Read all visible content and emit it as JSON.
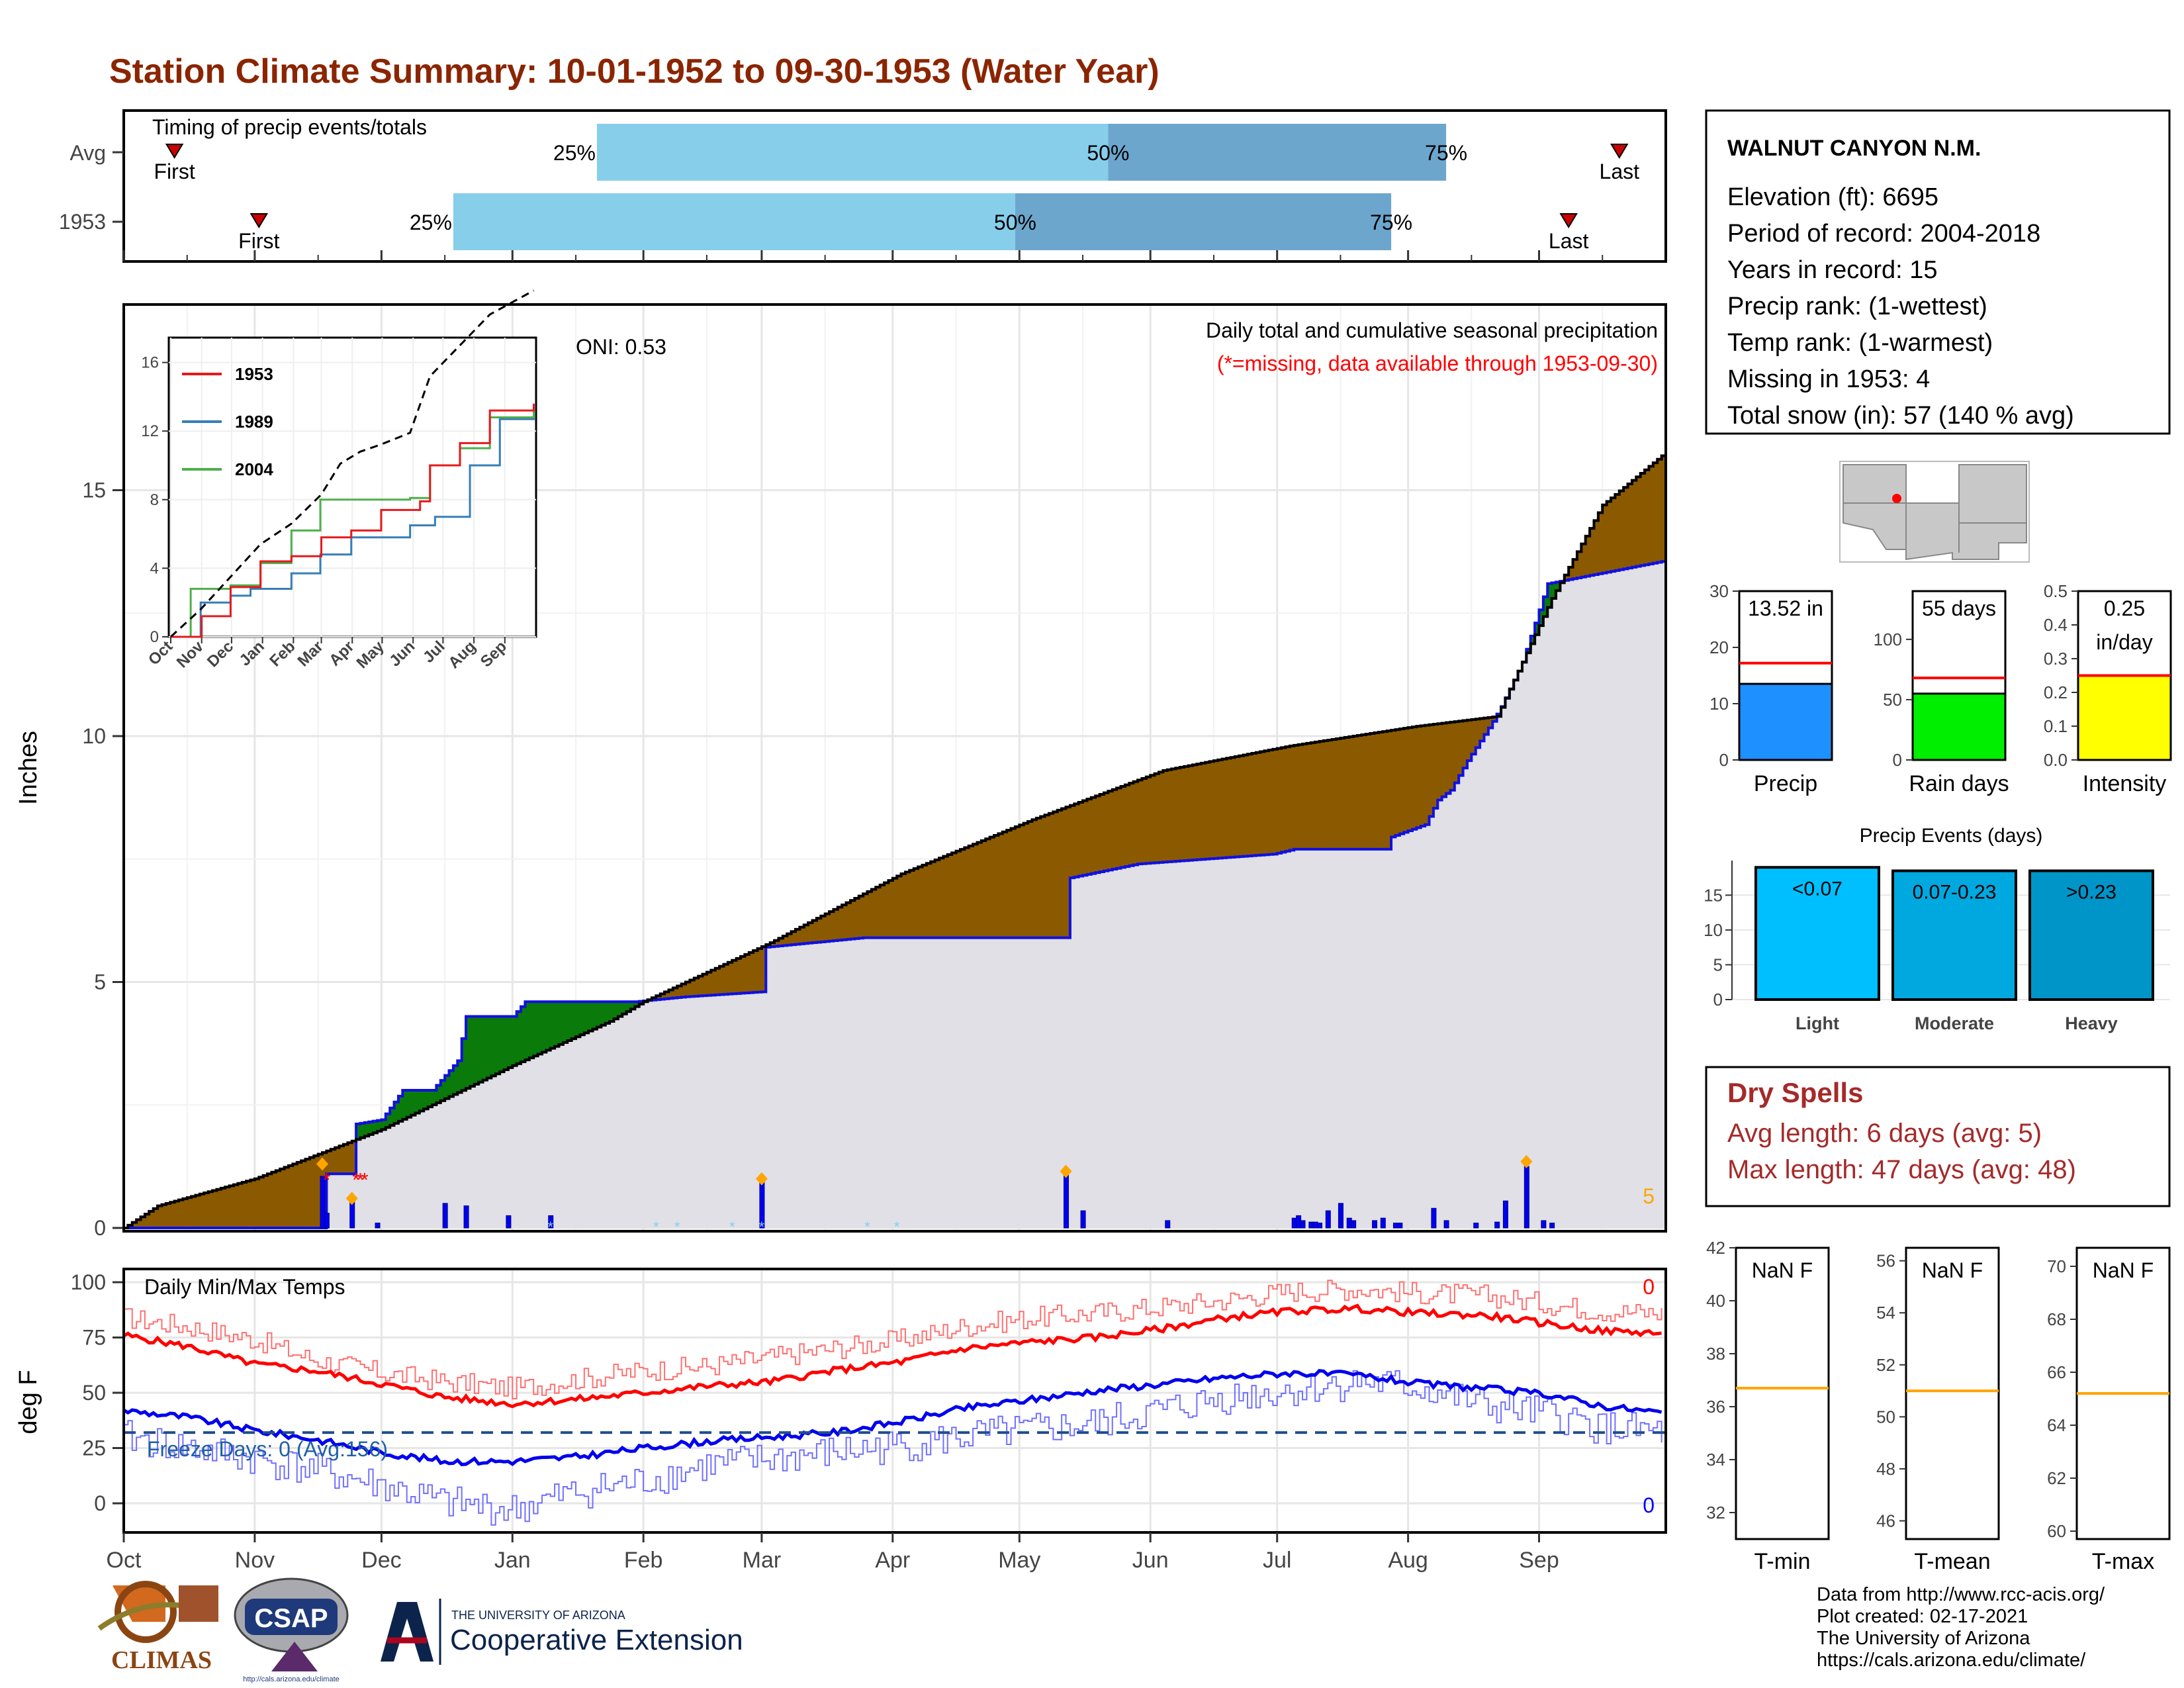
{
  "title": "Station Climate Summary: 10-01-1952 to 09-30-1953 (Water Year)",
  "colors": {
    "title": "#8b2500",
    "brown": "#8b5a00",
    "green": "#0a7a0a",
    "blue": "#1010e0",
    "red": "#ff0000",
    "orange": "#ffa500",
    "lightblue": "#87ceeb",
    "midblue": "#6ca6cd",
    "area": "#e0e0e6"
  },
  "timing": {
    "title": "Timing of precip events/totals",
    "rows": [
      {
        "label": "Avg",
        "first_label": "First",
        "last_label": "Last",
        "p25_label": "25%",
        "p50_label": "50%",
        "p75_label": "75%",
        "first_day": 12,
        "p25_day": 112,
        "p50_day": 233,
        "p75_day": 313,
        "last_day": 354
      },
      {
        "label": "1953",
        "first_label": "First",
        "last_label": "Last",
        "p25_label": "25%",
        "p50_label": "50%",
        "p75_label": "75%",
        "first_day": 32,
        "p25_day": 78,
        "p50_day": 211,
        "p75_day": 300,
        "last_day": 342
      }
    ]
  },
  "months": [
    "Oct",
    "Nov",
    "Dec",
    "Jan",
    "Feb",
    "Mar",
    "Apr",
    "May",
    "Jun",
    "Jul",
    "Aug",
    "Sep"
  ],
  "precip": {
    "ylabel": "Inches",
    "yticks": [
      "0",
      "5",
      "10",
      "15"
    ],
    "oni": "ONI: 0.53",
    "caption": "Daily total and cumulative seasonal precipitation",
    "missing_note": "(*=missing, data available through 1953-09-30)",
    "count_label": "5",
    "avg_cum": [
      [
        0,
        0
      ],
      [
        8,
        0.45
      ],
      [
        31,
        1
      ],
      [
        61,
        2
      ],
      [
        92,
        3.3
      ],
      [
        115,
        4.2
      ],
      [
        123,
        4.6
      ],
      [
        153,
        5.8
      ],
      [
        184,
        7.2
      ],
      [
        215,
        8.3
      ],
      [
        246,
        9.3
      ],
      [
        276,
        9.8
      ],
      [
        306,
        10.2
      ],
      [
        325,
        10.4
      ],
      [
        338,
        12.8
      ],
      [
        350,
        14.7
      ],
      [
        364,
        15.7
      ]
    ],
    "obs_cum": [
      [
        0,
        0
      ],
      [
        47,
        0
      ],
      [
        47,
        1.1
      ],
      [
        54,
        1.1
      ],
      [
        54,
        2.1
      ],
      [
        61,
        2.2
      ],
      [
        66,
        2.8
      ],
      [
        73,
        2.8
      ],
      [
        76,
        3.1
      ],
      [
        79,
        3.4
      ],
      [
        81,
        4.3
      ],
      [
        92,
        4.3
      ],
      [
        95,
        4.6
      ],
      [
        121,
        4.6
      ],
      [
        133,
        4.7
      ],
      [
        151,
        4.8
      ],
      [
        151,
        5.7
      ],
      [
        175,
        5.9
      ],
      [
        223,
        5.9
      ],
      [
        223,
        7.1
      ],
      [
        240,
        7.4
      ],
      [
        272,
        7.6
      ],
      [
        277,
        7.7
      ],
      [
        299,
        7.7
      ],
      [
        300,
        7.95
      ],
      [
        308,
        8.2
      ],
      [
        311,
        8.7
      ],
      [
        314,
        8.9
      ],
      [
        318,
        9.5
      ],
      [
        324,
        10.3
      ],
      [
        326,
        10.6
      ],
      [
        331,
        11.5
      ],
      [
        337,
        13.1
      ],
      [
        364,
        13.55
      ]
    ],
    "daily": [
      [
        47,
        1.05
      ],
      [
        48,
        0.3
      ],
      [
        54,
        0.55
      ],
      [
        60,
        0.1
      ],
      [
        76,
        0.5
      ],
      [
        81,
        0.45
      ],
      [
        91,
        0.25
      ],
      [
        101,
        0.25
      ],
      [
        151,
        0.95
      ],
      [
        223,
        1.15
      ],
      [
        227,
        0.35
      ],
      [
        247,
        0.15
      ],
      [
        277,
        0.2
      ],
      [
        278,
        0.25
      ],
      [
        279,
        0.15
      ],
      [
        281,
        0.12
      ],
      [
        282,
        0.12
      ],
      [
        283,
        0.1
      ],
      [
        285,
        0.35
      ],
      [
        288,
        0.5
      ],
      [
        290,
        0.2
      ],
      [
        291,
        0.15
      ],
      [
        296,
        0.15
      ],
      [
        298,
        0.2
      ],
      [
        301,
        0.1
      ],
      [
        302,
        0.1
      ],
      [
        310,
        0.4
      ],
      [
        313,
        0.15
      ],
      [
        320,
        0.1
      ],
      [
        325,
        0.12
      ],
      [
        327,
        0.55
      ],
      [
        332,
        1.25
      ],
      [
        336,
        0.15
      ],
      [
        338,
        0.1
      ]
    ],
    "orange_markers": [
      [
        47,
        1.3
      ],
      [
        54,
        0.6
      ],
      [
        151,
        1.0
      ],
      [
        223,
        1.15
      ],
      [
        332,
        1.35
      ]
    ],
    "missing_markers": [
      [
        48,
        1.0
      ],
      [
        55,
        1.0
      ],
      [
        56,
        1.0
      ],
      [
        57,
        1.0
      ]
    ]
  },
  "inset": {
    "yticks": [
      "0",
      "4",
      "8",
      "12",
      "16"
    ],
    "xticks": [
      "Oct",
      "Nov",
      "Dec",
      "Jan",
      "Feb",
      "Mar",
      "Apr",
      "May",
      "Jun",
      "Jul",
      "Aug",
      "Sep"
    ],
    "legend": [
      {
        "name": "1953",
        "color": "#e41a1c"
      },
      {
        "name": "1989",
        "color": "#377eb8"
      },
      {
        "name": "2004",
        "color": "#4daf4a"
      }
    ],
    "avg": [
      [
        0,
        0
      ],
      [
        30,
        1.6
      ],
      [
        60,
        3.5
      ],
      [
        90,
        5.4
      ],
      [
        121,
        6.6
      ],
      [
        151,
        8.3
      ],
      [
        170,
        10.1
      ],
      [
        190,
        10.8
      ],
      [
        210,
        11.2
      ],
      [
        240,
        11.9
      ],
      [
        260,
        15.2
      ],
      [
        290,
        17.0
      ],
      [
        320,
        18.8
      ],
      [
        364,
        20.2
      ]
    ],
    "s1953": [
      [
        0,
        0
      ],
      [
        31,
        1.2
      ],
      [
        60,
        2.9
      ],
      [
        90,
        4.4
      ],
      [
        121,
        4.7
      ],
      [
        151,
        5.8
      ],
      [
        181,
        6.2
      ],
      [
        211,
        7.4
      ],
      [
        250,
        7.9
      ],
      [
        260,
        10.0
      ],
      [
        290,
        11.3
      ],
      [
        320,
        13.2
      ],
      [
        364,
        13.6
      ]
    ],
    "s1989": [
      [
        0,
        0
      ],
      [
        30,
        2.0
      ],
      [
        60,
        2.4
      ],
      [
        80,
        2.8
      ],
      [
        121,
        3.7
      ],
      [
        150,
        4.8
      ],
      [
        181,
        5.8
      ],
      [
        240,
        6.5
      ],
      [
        265,
        7.0
      ],
      [
        300,
        10.0
      ],
      [
        330,
        12.7
      ],
      [
        364,
        13.2
      ]
    ],
    "s2004": [
      [
        0,
        0
      ],
      [
        20,
        2.8
      ],
      [
        60,
        3.0
      ],
      [
        90,
        4.3
      ],
      [
        121,
        6.2
      ],
      [
        150,
        8.0
      ],
      [
        190,
        8.0
      ],
      [
        240,
        8.1
      ],
      [
        260,
        10.0
      ],
      [
        290,
        11.0
      ],
      [
        320,
        12.8
      ],
      [
        364,
        13.4
      ]
    ]
  },
  "temps": {
    "ylabel": "deg F",
    "yticks": [
      "0",
      "25",
      "50",
      "75",
      "100"
    ],
    "title": "Daily Min/Max Temps",
    "freeze_label": "Freeze Days: 0 (Avg:156)",
    "max_count": "0",
    "min_count": "0",
    "freeze_line": 32,
    "avg_max": [
      [
        0,
        76
      ],
      [
        15,
        71
      ],
      [
        31,
        63
      ],
      [
        45,
        60
      ],
      [
        61,
        54
      ],
      [
        76,
        48
      ],
      [
        92,
        45
      ],
      [
        107,
        47
      ],
      [
        123,
        50
      ],
      [
        138,
        53
      ],
      [
        153,
        55
      ],
      [
        168,
        60
      ],
      [
        184,
        64
      ],
      [
        199,
        70
      ],
      [
        215,
        73
      ],
      [
        230,
        75
      ],
      [
        246,
        79
      ],
      [
        261,
        84
      ],
      [
        276,
        87
      ],
      [
        292,
        88
      ],
      [
        307,
        86
      ],
      [
        322,
        85
      ],
      [
        338,
        81
      ],
      [
        350,
        78
      ],
      [
        364,
        77
      ]
    ],
    "avg_min": [
      [
        0,
        42
      ],
      [
        15,
        39
      ],
      [
        31,
        33
      ],
      [
        45,
        29
      ],
      [
        61,
        23
      ],
      [
        76,
        19
      ],
      [
        92,
        19
      ],
      [
        107,
        21
      ],
      [
        123,
        25
      ],
      [
        138,
        28
      ],
      [
        153,
        30
      ],
      [
        168,
        32
      ],
      [
        184,
        37
      ],
      [
        199,
        43
      ],
      [
        215,
        47
      ],
      [
        230,
        51
      ],
      [
        246,
        54
      ],
      [
        261,
        57
      ],
      [
        276,
        59
      ],
      [
        292,
        58
      ],
      [
        307,
        54
      ],
      [
        322,
        52
      ],
      [
        338,
        49
      ],
      [
        350,
        44
      ],
      [
        364,
        41
      ]
    ],
    "obs_max": [
      [
        0,
        84
      ],
      [
        15,
        80
      ],
      [
        31,
        74
      ],
      [
        45,
        65
      ],
      [
        61,
        59
      ],
      [
        76,
        55
      ],
      [
        92,
        52
      ],
      [
        107,
        56
      ],
      [
        123,
        60
      ],
      [
        138,
        62
      ],
      [
        153,
        66
      ],
      [
        168,
        70
      ],
      [
        184,
        74
      ],
      [
        199,
        80
      ],
      [
        215,
        84
      ],
      [
        230,
        86
      ],
      [
        246,
        89
      ],
      [
        261,
        92
      ],
      [
        276,
        96
      ],
      [
        292,
        97
      ],
      [
        307,
        95
      ],
      [
        322,
        94
      ],
      [
        338,
        90
      ],
      [
        350,
        87
      ],
      [
        364,
        86
      ]
    ],
    "obs_min": [
      [
        0,
        30
      ],
      [
        15,
        25
      ],
      [
        31,
        20
      ],
      [
        45,
        15
      ],
      [
        61,
        8
      ],
      [
        76,
        0
      ],
      [
        92,
        -3
      ],
      [
        107,
        5
      ],
      [
        123,
        10
      ],
      [
        138,
        17
      ],
      [
        153,
        20
      ],
      [
        168,
        23
      ],
      [
        184,
        26
      ],
      [
        199,
        30
      ],
      [
        215,
        33
      ],
      [
        230,
        36
      ],
      [
        246,
        42
      ],
      [
        261,
        48
      ],
      [
        276,
        51
      ],
      [
        292,
        55
      ],
      [
        307,
        52
      ],
      [
        322,
        44
      ],
      [
        338,
        40
      ],
      [
        350,
        34
      ],
      [
        364,
        32
      ]
    ]
  },
  "station": {
    "name": "WALNUT CANYON N.M.",
    "lines": [
      "Elevation (ft): 6695",
      "Period of record: 2004-2018",
      "Years in record: 15",
      "Precip rank:  (1-wettest)",
      "Temp rank:  (1-warmest)",
      "Missing in 1953: 4",
      "Total snow (in): 57 (140 % avg)"
    ]
  },
  "gauges": [
    {
      "label": "Precip",
      "value_label": "13.52 in",
      "value": 13.52,
      "avg": 17.2,
      "max": 30,
      "ticks": [
        "0",
        "10",
        "20",
        "30"
      ],
      "color": "#1e90ff"
    },
    {
      "label": "Rain days",
      "value_label": "55 days",
      "value": 55,
      "avg": 68,
      "max": 140,
      "ticks": [
        "0",
        "50",
        "100"
      ],
      "color": "#00ee00"
    },
    {
      "label": "Intensity",
      "value_label": "0.25",
      "value_label2": "in/day",
      "value": 0.25,
      "avg": 0.25,
      "max": 0.5,
      "ticks": [
        "0.0",
        "0.1",
        "0.2",
        "0.3",
        "0.4",
        "0.5"
      ],
      "color": "#ffff00"
    }
  ],
  "events": {
    "title": "Precip Events (days)",
    "yticks": [
      "0",
      "5",
      "10",
      "15"
    ],
    "bars": [
      {
        "cat": "Light",
        "label": "<0.07",
        "value": 19,
        "color": "#00bfff"
      },
      {
        "cat": "Moderate",
        "label": "0.07-0.23",
        "value": 18.5,
        "color": "#00a8e0"
      },
      {
        "cat": "Heavy",
        "label": ">0.23",
        "value": 18.5,
        "color": "#0095c8"
      }
    ]
  },
  "dry": {
    "title": "Dry Spells",
    "avg": "Avg length: 6 days (avg: 5)",
    "max": "Max length: 47 days (avg: 48)"
  },
  "temp_boxes": [
    {
      "label": "T-min",
      "value_label": "NaN F",
      "ticks": [
        "32",
        "34",
        "36",
        "38",
        "40",
        "42"
      ],
      "min": 31,
      "max": 42,
      "avg": 36.7
    },
    {
      "label": "T-mean",
      "value_label": "NaN F",
      "ticks": [
        "46",
        "48",
        "50",
        "52",
        "54",
        "56"
      ],
      "min": 45.3,
      "max": 56.5,
      "avg": 51
    },
    {
      "label": "T-max",
      "value_label": "NaN F",
      "ticks": [
        "60",
        "62",
        "64",
        "66",
        "68",
        "70"
      ],
      "min": 59.7,
      "max": 70.7,
      "avg": 65.2
    }
  ],
  "footer": {
    "lines": [
      "Data from http://www.rcc-acis.org/",
      "Plot created: 02-17-2021",
      "The University of Arizona",
      "https://cals.arizona.edu/climate/"
    ],
    "climas": "CLIMAS",
    "csap": "CSAP",
    "csap_url": "http://cals.arizona.edu/climate",
    "ua_small": "THE UNIVERSITY OF ARIZONA",
    "ua_big": "Cooperative Extension"
  }
}
